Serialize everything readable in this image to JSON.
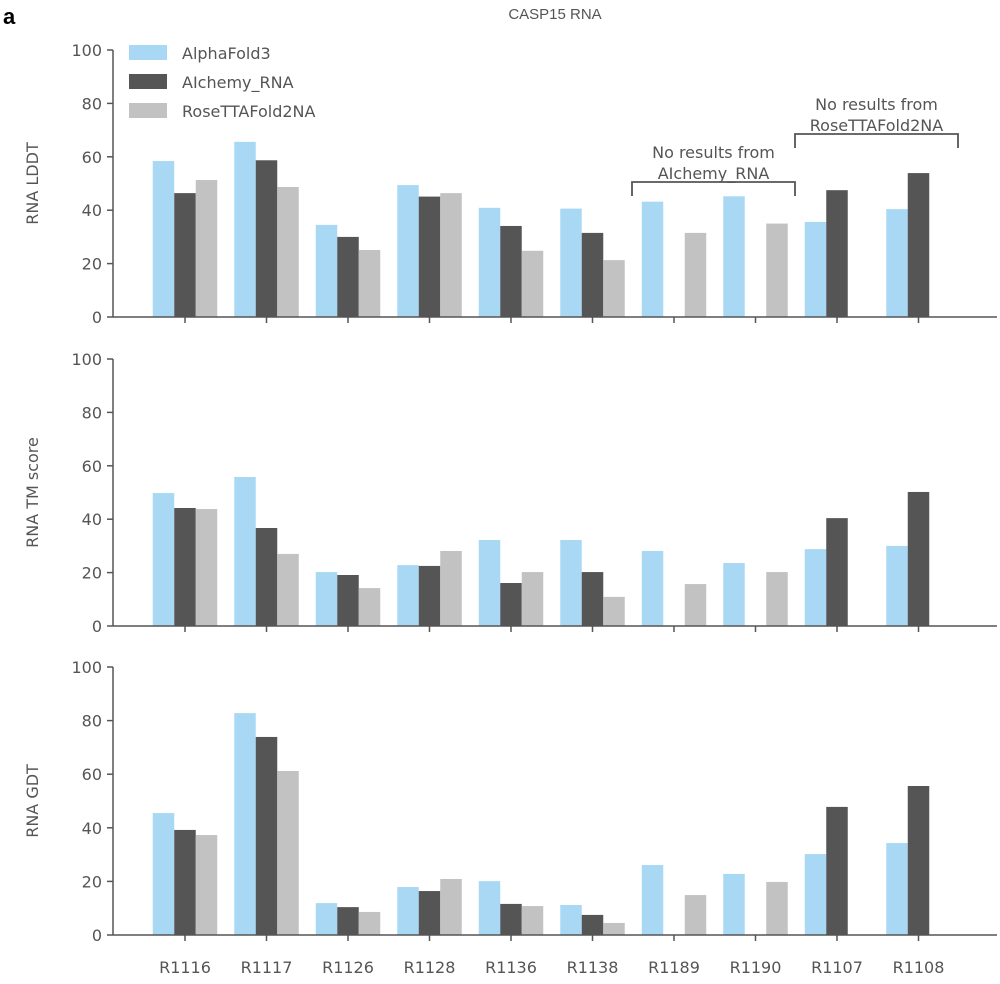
{
  "panel_label": "a",
  "chart_data": [
    {
      "type": "bar",
      "title": "CASP15 RNA",
      "ylabel": "RNA LDDT",
      "ylim": [
        0,
        100
      ],
      "yticks": [
        0,
        20,
        40,
        60,
        80,
        100
      ],
      "categories": [
        "R1116",
        "R1117",
        "R1126",
        "R1128",
        "R1136",
        "R1138",
        "R1189",
        "R1190",
        "R1107",
        "R1108"
      ],
      "series": [
        {
          "name": "AlphaFold3",
          "color": "#a9d8f4",
          "values": [
            58.4,
            65.6,
            34.5,
            49.4,
            40.9,
            40.6,
            43.2,
            45.2,
            35.6,
            40.4
          ]
        },
        {
          "name": "AIchemy_RNA",
          "color": "#555555",
          "values": [
            46.4,
            58.7,
            30.0,
            45.1,
            34.1,
            31.5,
            null,
            null,
            47.5,
            53.9
          ]
        },
        {
          "name": "RoseTTAFold2NA",
          "color": "#c2c2c2",
          "values": [
            51.3,
            48.7,
            25.1,
            46.4,
            24.8,
            21.3,
            31.5,
            35.0,
            null,
            null
          ]
        }
      ],
      "legend": "top-left",
      "annotations": [
        {
          "text": [
            "No results from",
            "AIchemy_RNA"
          ],
          "categories": [
            "R1189",
            "R1190"
          ]
        },
        {
          "text": [
            "No results from",
            "RoseTTAFold2NA"
          ],
          "categories": [
            "R1107",
            "R1108"
          ]
        }
      ]
    },
    {
      "type": "bar",
      "ylabel": "RNA TM score",
      "ylim": [
        0,
        100
      ],
      "yticks": [
        0,
        20,
        40,
        60,
        80,
        100
      ],
      "categories": [
        "R1116",
        "R1117",
        "R1126",
        "R1128",
        "R1136",
        "R1138",
        "R1189",
        "R1190",
        "R1107",
        "R1108"
      ],
      "series": [
        {
          "name": "AlphaFold3",
          "color": "#a9d8f4",
          "values": [
            49.8,
            55.8,
            20.2,
            22.8,
            32.2,
            32.2,
            28.1,
            23.6,
            28.8,
            30.0
          ]
        },
        {
          "name": "AIchemy_RNA",
          "color": "#555555",
          "values": [
            44.2,
            36.7,
            19.1,
            22.5,
            16.1,
            20.2,
            null,
            null,
            40.4,
            50.2
          ]
        },
        {
          "name": "RoseTTAFold2NA",
          "color": "#c2c2c2",
          "values": [
            43.8,
            27.0,
            14.2,
            28.1,
            20.2,
            10.9,
            15.7,
            20.2,
            null,
            null
          ]
        }
      ]
    },
    {
      "type": "bar",
      "ylabel": "RNA GDT",
      "ylim": [
        0,
        100
      ],
      "yticks": [
        0,
        20,
        40,
        60,
        80,
        100
      ],
      "categories": [
        "R1116",
        "R1117",
        "R1126",
        "R1128",
        "R1136",
        "R1138",
        "R1189",
        "R1190",
        "R1107",
        "R1108"
      ],
      "series": [
        {
          "name": "AlphaFold3",
          "color": "#a9d8f4",
          "values": [
            45.5,
            82.8,
            11.9,
            17.9,
            20.1,
            11.2,
            26.1,
            22.8,
            30.2,
            34.3
          ]
        },
        {
          "name": "AIchemy_RNA",
          "color": "#555555",
          "values": [
            39.2,
            73.9,
            10.4,
            16.4,
            11.6,
            7.5,
            null,
            null,
            47.8,
            55.6
          ]
        },
        {
          "name": "RoseTTAFold2NA",
          "color": "#c2c2c2",
          "values": [
            37.3,
            61.2,
            8.6,
            20.9,
            10.8,
            4.5,
            14.9,
            19.8,
            null,
            null
          ]
        }
      ]
    }
  ]
}
